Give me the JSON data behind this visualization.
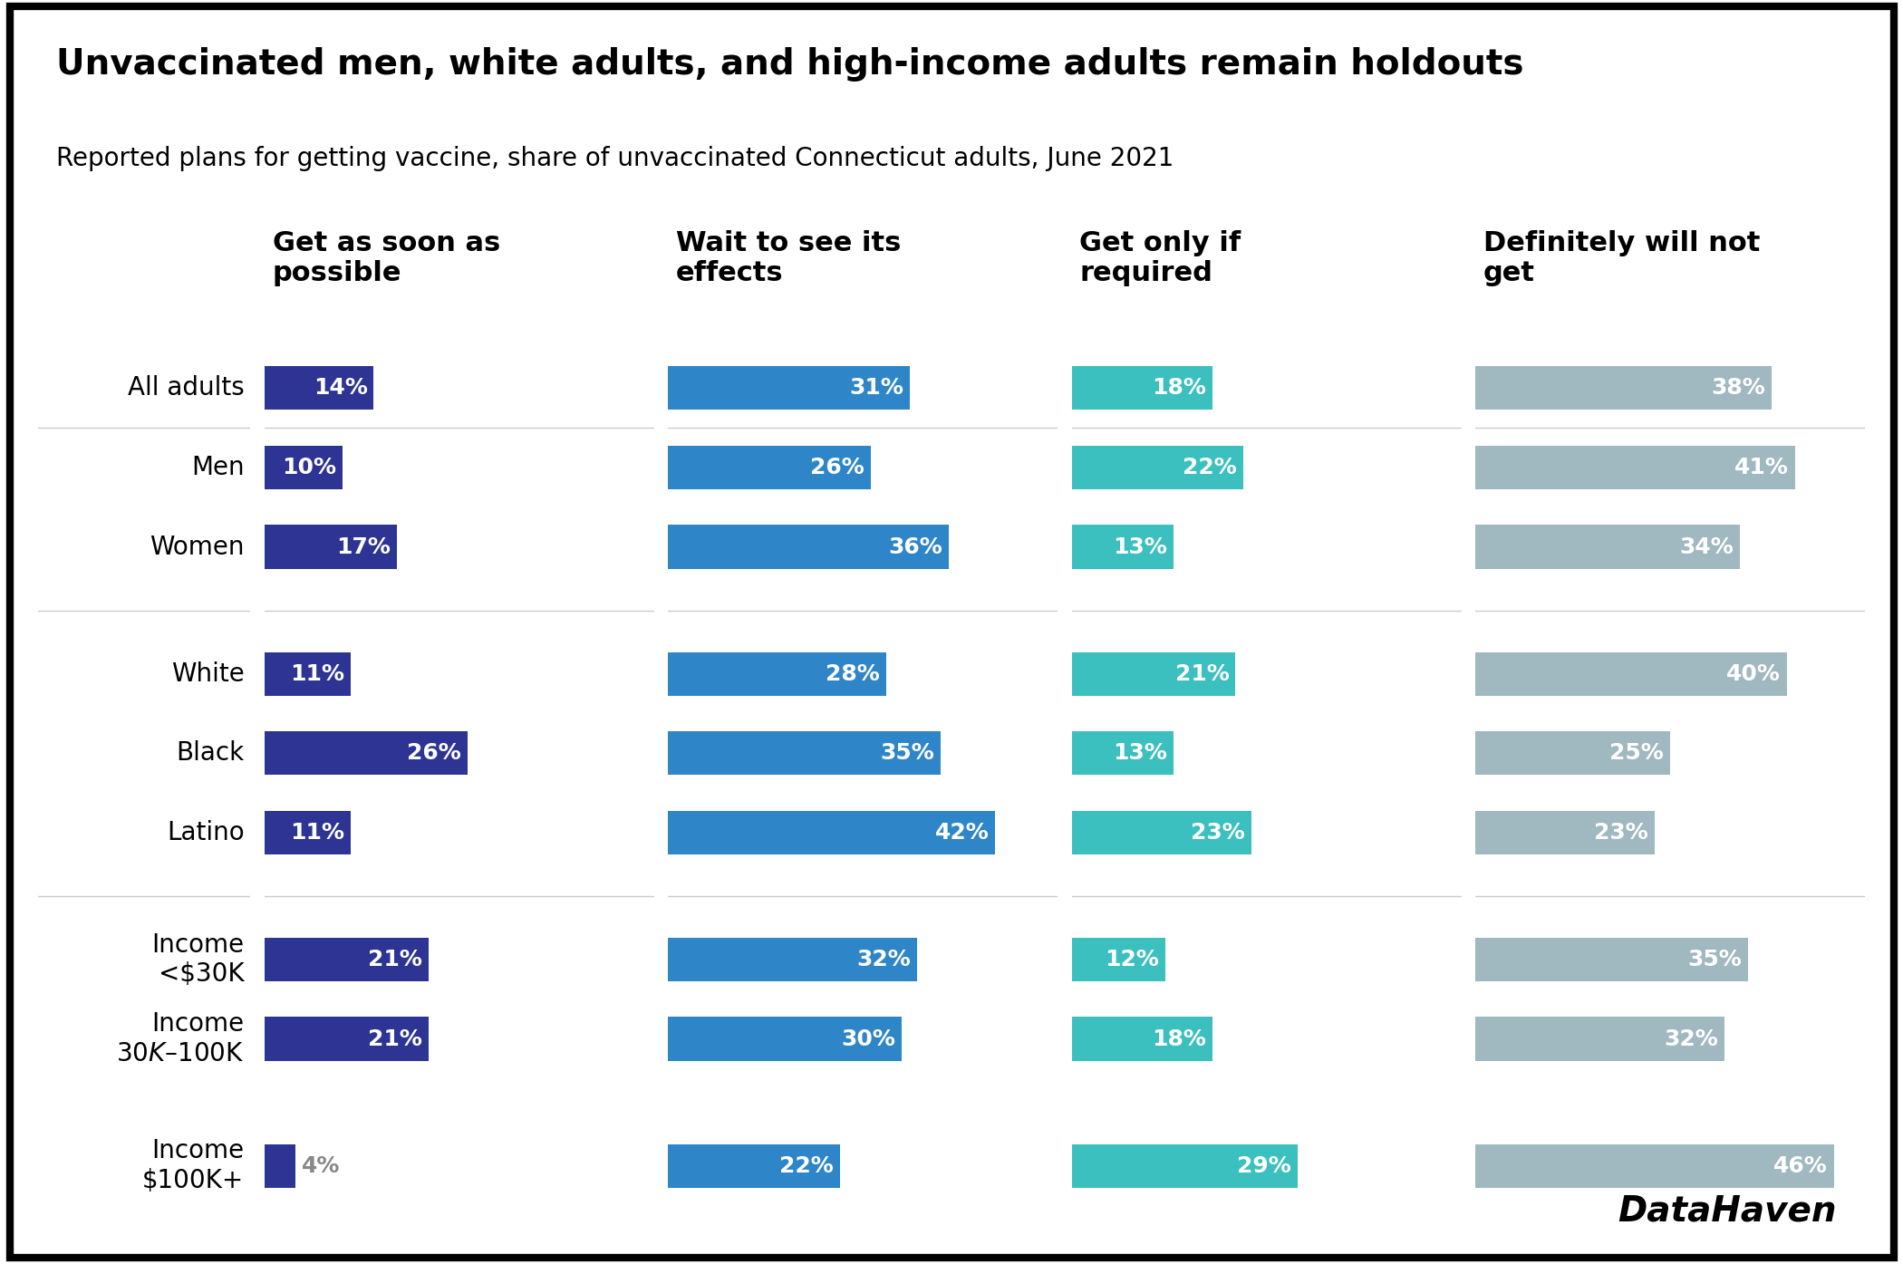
{
  "title": "Unvaccinated men, white adults, and high-income adults remain holdouts",
  "subtitle": "Reported plans for getting vaccine, share of unvaccinated Connecticut adults, June 2021",
  "categories": [
    "All adults",
    "Men",
    "Women",
    "White",
    "Black",
    "Latino",
    "Income\n<$30K",
    "Income\n$30K–$100K",
    "Income\n$100K+"
  ],
  "col_headers": [
    "Get as soon as\npossible",
    "Wait to see its\neffects",
    "Get only if\nrequired",
    "Definitely will not\nget"
  ],
  "col1_values": [
    14,
    10,
    17,
    11,
    26,
    11,
    21,
    21,
    4
  ],
  "col2_values": [
    31,
    26,
    36,
    28,
    35,
    42,
    32,
    30,
    22
  ],
  "col3_values": [
    18,
    22,
    13,
    21,
    13,
    23,
    12,
    18,
    29
  ],
  "col4_values": [
    38,
    41,
    34,
    40,
    25,
    23,
    35,
    32,
    46
  ],
  "col1_color": "#2d3494",
  "col2_color": "#2e86c8",
  "col3_color": "#3bbfbf",
  "col4_color": "#a0b8bf",
  "label_color_inside": "#ffffff",
  "label_color_outside": "#888888",
  "background_color": "#ffffff",
  "bar_height": 0.55,
  "max_value": 50,
  "datahaven_label": "DataHaven",
  "title_fontsize": 28,
  "subtitle_fontsize": 20,
  "header_fontsize": 22,
  "label_fontsize": 18,
  "category_fontsize": 20
}
